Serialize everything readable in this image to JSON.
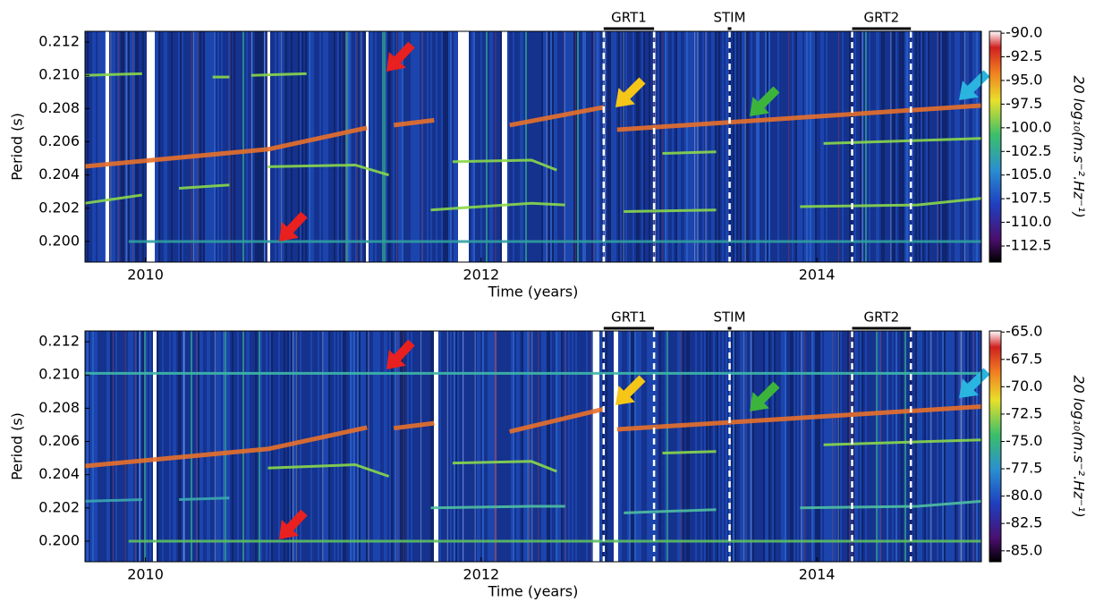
{
  "chart_data": [
    {
      "type": "spectrogram",
      "xlabel": "Time (years)",
      "ylabel": "Period (s)",
      "xlim": [
        2009.64,
        2014.98
      ],
      "xticks": [
        2010,
        2012,
        2014
      ],
      "ylim": [
        0.19876,
        0.21265
      ],
      "yticks": [
        {
          "value": 0.2,
          "label": "0.200"
        },
        0.202,
        0.204,
        0.206,
        0.208,
        {
          "value": 0.21,
          "label": "0.210"
        },
        0.212
      ],
      "colorbar": {
        "label": "20 log₁₀(m.s⁻².Hz⁻¹)",
        "lim": [
          -114.2,
          -89.8
        ],
        "ticks": [
          {
            "value": -90,
            "label": "-90.0"
          },
          -92.5,
          {
            "value": -95,
            "label": "-95.0"
          },
          -97.5,
          {
            "value": -100,
            "label": "-100.0"
          },
          -102.5,
          {
            "value": -105,
            "label": "-105.0"
          },
          -107.5,
          {
            "value": -110,
            "label": "-110.0"
          },
          -112.5
        ]
      },
      "annotations": [
        {
          "text": "GRT1",
          "x": [
            2012.73,
            2013.03
          ]
        },
        {
          "text": "STIM",
          "x": [
            2013.48
          ]
        },
        {
          "text": "GRT2",
          "x": [
            2014.21,
            2014.56
          ]
        }
      ],
      "series": [
        {
          "color": "#e8702a",
          "x": [
            2009.64,
            2010.73,
            2011.32,
            null,
            2011.48,
            2011.72,
            null,
            2012.17,
            2012.73,
            null,
            2012.81,
            2014.98
          ],
          "values": [
            0.20452,
            0.20555,
            0.20684,
            null,
            0.207,
            0.2073,
            null,
            0.207,
            0.20808,
            null,
            0.20673,
            0.20818
          ]
        },
        {
          "color": "#8ad84a",
          "x": [
            2009.64,
            2009.98,
            null,
            2010.4,
            2010.5,
            null,
            2010.63,
            2010.96
          ],
          "values": [
            0.21,
            0.2101,
            null,
            0.2099,
            0.2099,
            null,
            0.21,
            0.2101
          ]
        },
        {
          "color": "#8ad84a",
          "x": [
            2009.64,
            2009.98,
            null,
            2010.2,
            2010.5
          ],
          "values": [
            0.2023,
            0.2028,
            null,
            0.2032,
            0.2034
          ]
        },
        {
          "color": "#8ad84a",
          "x": [
            2010.73,
            2011.25,
            2011.45,
            null,
            2011.83,
            2012.3,
            2012.45,
            null,
            2013.08,
            2013.4,
            null,
            2014.04,
            2014.98
          ],
          "values": [
            0.2045,
            0.2046,
            0.204,
            null,
            0.2048,
            0.2049,
            0.2043,
            null,
            0.2053,
            0.2054,
            null,
            0.2059,
            0.2062
          ]
        },
        {
          "color": "#8ad84a",
          "x": [
            2011.7,
            2012.3,
            2012.5,
            null,
            2012.85,
            2013.4,
            null,
            2013.9,
            2014.6,
            2014.98
          ],
          "values": [
            0.2019,
            0.2023,
            0.2022,
            null,
            0.2018,
            0.2019,
            null,
            0.2021,
            0.2022,
            0.2026
          ]
        },
        {
          "color": "#2fa0a0",
          "x": [
            2009.9,
            2014.98
          ],
          "values": [
            0.2,
            0.2
          ]
        }
      ]
    },
    {
      "type": "spectrogram",
      "xlabel": "Time (years)",
      "ylabel": "Period (s)",
      "xlim": [
        2009.64,
        2014.98
      ],
      "xticks": [
        2010,
        2012,
        2014
      ],
      "ylim": [
        0.19876,
        0.21265
      ],
      "yticks": [
        {
          "value": 0.2,
          "label": "0.200"
        },
        0.202,
        0.204,
        0.206,
        0.208,
        {
          "value": 0.21,
          "label": "0.210"
        },
        0.212
      ],
      "colorbar": {
        "label": "20 log₁₀(m.s⁻².Hz⁻¹)",
        "lim": [
          -86.0,
          -64.9
        ],
        "ticks": [
          {
            "value": -65,
            "label": "-65.0"
          },
          -67.5,
          {
            "value": -70,
            "label": "-70.0"
          },
          -72.5,
          {
            "value": -75,
            "label": "-75.0"
          },
          -77.5,
          {
            "value": -80,
            "label": "-80.0"
          },
          -82.5,
          {
            "value": -85,
            "label": "-85.0"
          }
        ]
      },
      "annotations": [
        {
          "text": "GRT1",
          "x": [
            2012.73,
            2013.03
          ]
        },
        {
          "text": "STIM",
          "x": [
            2013.48
          ]
        },
        {
          "text": "GRT2",
          "x": [
            2014.21,
            2014.56
          ]
        }
      ],
      "series": [
        {
          "color": "#e8702a",
          "x": [
            2009.64,
            2010.73,
            2011.32,
            null,
            2011.48,
            2011.72,
            null,
            2012.17,
            2012.73,
            null,
            2012.81,
            2014.98
          ],
          "values": [
            0.20452,
            0.20555,
            0.20684,
            null,
            0.2068,
            0.2071,
            null,
            0.2066,
            0.20795,
            null,
            0.20673,
            0.2081
          ]
        },
        {
          "color": "#3fb8a8",
          "x": [
            2009.64,
            2014.98
          ],
          "values": [
            0.2101,
            0.2101
          ]
        },
        {
          "color": "#3aa8b0",
          "x": [
            2009.64,
            2009.98,
            null,
            2010.2,
            2010.5
          ],
          "values": [
            0.2024,
            0.2025,
            null,
            0.2025,
            0.2026
          ]
        },
        {
          "color": "#8ad84a",
          "x": [
            2010.73,
            2011.25,
            2011.45,
            null,
            2011.83,
            2012.3,
            2012.45,
            null,
            2013.08,
            2013.4,
            null,
            2014.04,
            2014.98
          ],
          "values": [
            0.2044,
            0.2046,
            0.2039,
            null,
            0.2047,
            0.2048,
            0.2042,
            null,
            0.2053,
            0.2054,
            null,
            0.2058,
            0.2061
          ]
        },
        {
          "color": "#4fc0a0",
          "x": [
            2011.7,
            2012.3,
            2012.5,
            null,
            2012.85,
            2013.4,
            null,
            2013.9,
            2014.6,
            2014.98
          ],
          "values": [
            0.202,
            0.2021,
            0.2021,
            null,
            0.2017,
            0.2019,
            null,
            0.202,
            0.2021,
            0.2024
          ]
        },
        {
          "color": "#5cc060",
          "x": [
            2009.9,
            2014.98
          ],
          "values": [
            0.2,
            0.2
          ]
        }
      ]
    }
  ]
}
